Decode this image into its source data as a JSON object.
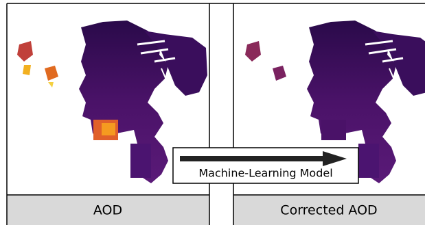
{
  "panels": [
    {
      "label": "AOD"
    },
    {
      "label": "Corrected AOD"
    }
  ],
  "arrow": {
    "label": "Machine-Learning Model"
  }
}
